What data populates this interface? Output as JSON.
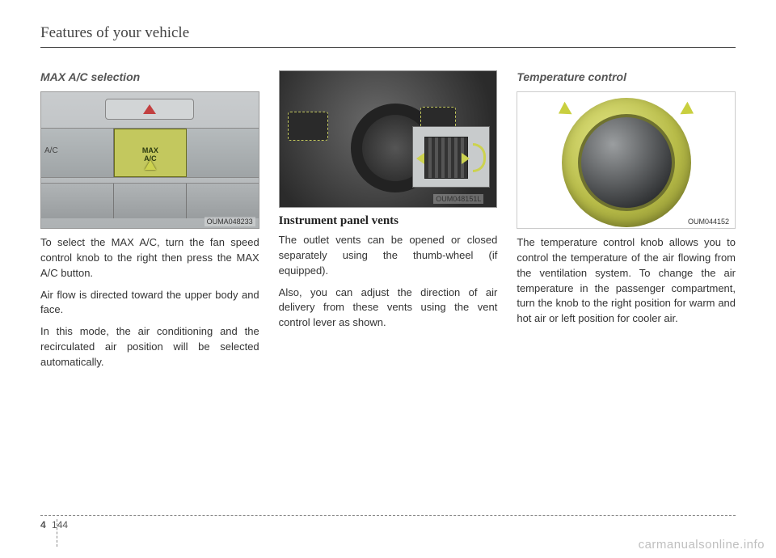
{
  "header": {
    "title": "Features of your vehicle"
  },
  "col1": {
    "title": "MAX A/C selection",
    "fig": {
      "caption": "OUMA048233",
      "ac_label": "A/C",
      "max_line1": "MAX",
      "max_line2": "A/C"
    },
    "p1": "To select the MAX A/C, turn the fan speed control knob to the right then press the MAX A/C button.",
    "p2": "Air flow is directed toward the upper body and face.",
    "p3": "In this mode, the air conditioning and the recirculated air position will be selected automatically."
  },
  "col2": {
    "fig": {
      "caption": "OUM048151L"
    },
    "subheading": "Instrument panel vents",
    "p1": "The outlet vents can be opened or closed separately using the thumb-wheel (if equipped).",
    "p2": "Also, you can adjust the direction of air delivery from these vents using the vent control lever as shown."
  },
  "col3": {
    "title": "Temperature control",
    "fig": {
      "caption": "OUM044152"
    },
    "p1": "The temperature control knob allows you to control the temperature of the air flowing from the ventilation system. To change the air temperature in the passenger compartment, turn the knob to the right position for warm and hot air or left position for cooler air."
  },
  "footer": {
    "section": "4",
    "page": "144"
  },
  "watermark": "carmanualsonline.info"
}
